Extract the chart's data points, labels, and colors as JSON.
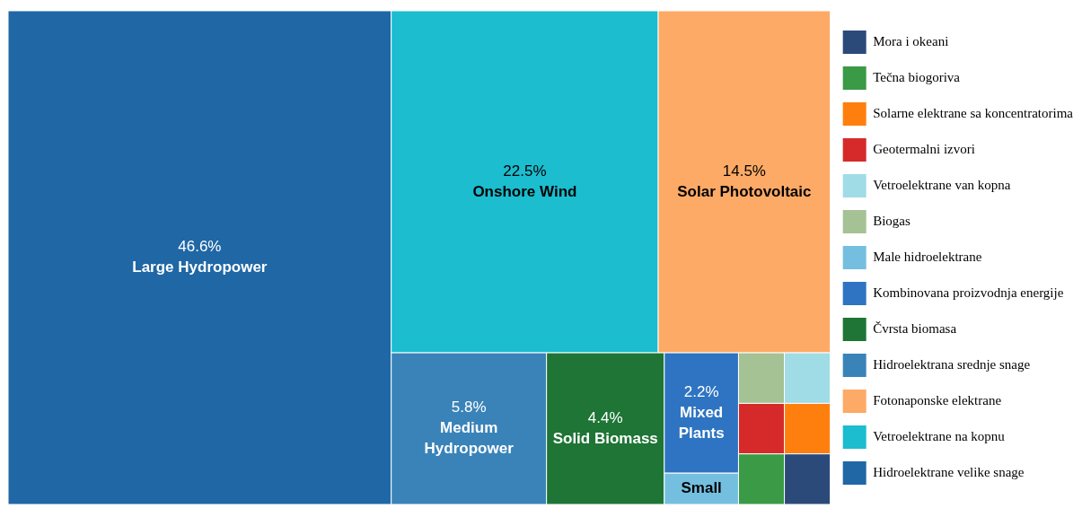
{
  "chart_data": {
    "type": "other",
    "legend": "right",
    "categories": [
      "Large Hydropower",
      "Onshore Wind",
      "Solar Photovoltaic",
      "Medium Hydropower",
      "Solid Biomass",
      "Mixed Plants",
      "Small",
      null,
      null,
      null,
      null,
      null,
      null
    ],
    "series": [
      {
        "name": "Hidroelektrane velike snage",
        "color": "#1f67a5",
        "values": [
          46.6,
          null,
          null,
          null,
          null,
          null,
          null,
          null,
          null,
          null,
          null,
          null,
          null
        ],
        "value_labels": [
          "46.6%",
          null,
          null,
          null,
          null,
          null,
          null,
          null,
          null,
          null,
          null,
          null,
          null
        ]
      },
      {
        "name": "Vetroelektrane na kopnu",
        "color": "#1bbdcf",
        "values": [
          null,
          22.5,
          null,
          null,
          null,
          null,
          null,
          null,
          null,
          null,
          null,
          null,
          null
        ],
        "value_labels": [
          null,
          "22.5%",
          null,
          null,
          null,
          null,
          null,
          null,
          null,
          null,
          null,
          null,
          null
        ]
      },
      {
        "name": "Fotonaponske elektrane",
        "color": "#fdaa66",
        "values": [
          null,
          null,
          14.5,
          null,
          null,
          null,
          null,
          null,
          null,
          null,
          null,
          null,
          null
        ],
        "value_labels": [
          null,
          null,
          "14.5%",
          null,
          null,
          null,
          null,
          null,
          null,
          null,
          null,
          null,
          null
        ]
      },
      {
        "name": "Hidroelektrana srednje snage",
        "color": "#3a83b9",
        "values": [
          null,
          null,
          null,
          5.8,
          null,
          null,
          null,
          null,
          null,
          null,
          null,
          null,
          null
        ],
        "value_labels": [
          null,
          null,
          null,
          "5.8%",
          null,
          null,
          null,
          null,
          null,
          null,
          null,
          null,
          null
        ]
      },
      {
        "name": "Čvrsta biomasa",
        "color": "#1e7535",
        "values": [
          null,
          null,
          null,
          null,
          4.4,
          null,
          null,
          null,
          null,
          null,
          null,
          null,
          null
        ],
        "value_labels": [
          null,
          null,
          null,
          null,
          "4.4%",
          null,
          null,
          null,
          null,
          null,
          null,
          null,
          null
        ]
      },
      {
        "name": "Kombinovana proizvodnja energije",
        "color": "#2e74c2",
        "values": [
          null,
          null,
          null,
          null,
          null,
          2.2,
          null,
          null,
          null,
          null,
          null,
          null,
          null
        ],
        "value_labels": [
          null,
          null,
          null,
          null,
          null,
          "2.2%",
          null,
          null,
          null,
          null,
          null,
          null,
          null
        ]
      },
      {
        "name": "Male hidroelektrane",
        "color": "#74bfe0",
        "values": [
          null,
          null,
          null,
          null,
          null,
          null,
          null,
          null,
          null,
          null,
          null,
          null,
          null
        ]
      },
      {
        "name": "Biogas",
        "color": "#a4c294",
        "values": [
          null,
          null,
          null,
          null,
          null,
          null,
          null,
          null,
          null,
          null,
          null,
          null,
          null
        ]
      },
      {
        "name": "Vetroelektrane van kopna",
        "color": "#a0dce6",
        "values": [
          null,
          null,
          null,
          null,
          null,
          null,
          null,
          null,
          null,
          null,
          null,
          null,
          null
        ]
      },
      {
        "name": "Geotermalni izvori",
        "color": "#d62a2a",
        "values": [
          null,
          null,
          null,
          null,
          null,
          null,
          null,
          null,
          null,
          null,
          null,
          null,
          null
        ]
      },
      {
        "name": "Solarne elektrane sa koncentratorima",
        "color": "#ff7f0e",
        "values": [
          null,
          null,
          null,
          null,
          null,
          null,
          null,
          null,
          null,
          null,
          null,
          null,
          null
        ]
      },
      {
        "name": "Tečna biogoriva",
        "color": "#3a9a46",
        "values": [
          null,
          null,
          null,
          null,
          null,
          null,
          null,
          null,
          null,
          null,
          null,
          null,
          null
        ]
      },
      {
        "name": "Mora i okeani",
        "color": "#2b4a7a",
        "values": [
          null,
          null,
          null,
          null,
          null,
          null,
          null,
          null,
          null,
          null,
          null,
          null,
          null
        ]
      }
    ]
  }
}
